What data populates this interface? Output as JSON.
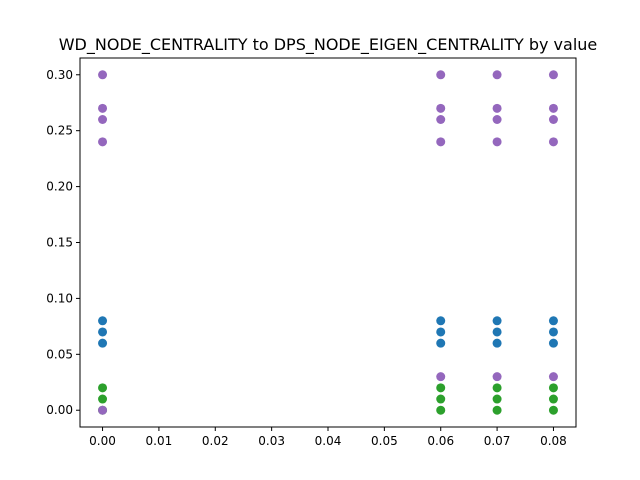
{
  "chart_data": {
    "type": "scatter",
    "title": "WD_NODE_CENTRALITY to DPS_NODE_EIGEN_CENTRALITY by value",
    "xlabel": "",
    "ylabel": "",
    "xlim": [
      -0.004,
      0.084
    ],
    "ylim": [
      -0.015,
      0.315
    ],
    "xticks": [
      0.0,
      0.01,
      0.02,
      0.03,
      0.04,
      0.05,
      0.06,
      0.07,
      0.08
    ],
    "xtick_labels": [
      "0.00",
      "0.01",
      "0.02",
      "0.03",
      "0.04",
      "0.05",
      "0.06",
      "0.07",
      "0.08"
    ],
    "yticks": [
      0.0,
      0.05,
      0.1,
      0.15,
      0.2,
      0.25,
      0.3
    ],
    "ytick_labels": [
      "0.00",
      "0.05",
      "0.10",
      "0.15",
      "0.20",
      "0.25",
      "0.30"
    ],
    "grid": false,
    "series": [
      {
        "color": "#1f77b4",
        "points": [
          [
            0.0,
            0.06
          ],
          [
            0.0,
            0.07
          ],
          [
            0.0,
            0.08
          ],
          [
            0.06,
            0.06
          ],
          [
            0.06,
            0.07
          ],
          [
            0.06,
            0.08
          ],
          [
            0.07,
            0.06
          ],
          [
            0.07,
            0.07
          ],
          [
            0.07,
            0.08
          ],
          [
            0.08,
            0.06
          ],
          [
            0.08,
            0.07
          ],
          [
            0.08,
            0.08
          ]
        ]
      },
      {
        "color": "#2ca02c",
        "points": [
          [
            0.0,
            0.0
          ],
          [
            0.0,
            0.01
          ],
          [
            0.0,
            0.02
          ],
          [
            0.06,
            0.0
          ],
          [
            0.06,
            0.01
          ],
          [
            0.06,
            0.02
          ],
          [
            0.07,
            0.0
          ],
          [
            0.07,
            0.01
          ],
          [
            0.07,
            0.02
          ],
          [
            0.08,
            0.0
          ],
          [
            0.08,
            0.01
          ],
          [
            0.08,
            0.02
          ]
        ]
      },
      {
        "color": "#9467bd",
        "points": [
          [
            0.0,
            0.0
          ],
          [
            0.0,
            0.24
          ],
          [
            0.0,
            0.26
          ],
          [
            0.0,
            0.27
          ],
          [
            0.0,
            0.3
          ],
          [
            0.06,
            0.03
          ],
          [
            0.06,
            0.24
          ],
          [
            0.06,
            0.26
          ],
          [
            0.06,
            0.27
          ],
          [
            0.06,
            0.3
          ],
          [
            0.07,
            0.03
          ],
          [
            0.07,
            0.24
          ],
          [
            0.07,
            0.26
          ],
          [
            0.07,
            0.27
          ],
          [
            0.07,
            0.3
          ],
          [
            0.08,
            0.03
          ],
          [
            0.08,
            0.24
          ],
          [
            0.08,
            0.26
          ],
          [
            0.08,
            0.27
          ],
          [
            0.08,
            0.3
          ]
        ]
      }
    ]
  }
}
